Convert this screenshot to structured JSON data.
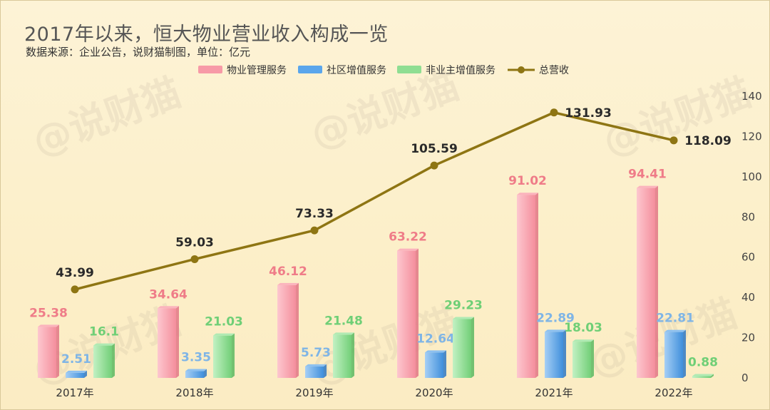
{
  "header": {
    "title": "2017年以来，恒大物业营业收入构成一览",
    "subtitle": "数据来源：企业公告，说财猫制图，单位：亿元"
  },
  "watermark": {
    "text": "@说财猫"
  },
  "colors": {
    "series0": "#f79aa7",
    "series0_label": "#ef7c88",
    "series1": "#5aa6ec",
    "series1_label": "#7fb5e6",
    "series2": "#8fde92",
    "series2_label": "#6fcf76",
    "total": "#8e7513"
  },
  "chart_data": {
    "type": "bar",
    "title": "2017年以来，恒大物业营业收入构成一览",
    "categories": [
      "2017年",
      "2018年",
      "2019年",
      "2020年",
      "2021年",
      "2022年"
    ],
    "series": [
      {
        "name": "物业管理服务",
        "type": "bar",
        "values": [
          25.38,
          34.64,
          46.12,
          63.22,
          91.02,
          94.41
        ]
      },
      {
        "name": "社区增值服务",
        "type": "bar",
        "values": [
          2.51,
          3.35,
          5.73,
          12.64,
          22.89,
          22.81
        ]
      },
      {
        "name": "非业主增值服务",
        "type": "bar",
        "values": [
          16.1,
          21.03,
          21.48,
          29.23,
          18.03,
          0.88
        ]
      },
      {
        "name": "总营收",
        "type": "line",
        "values": [
          43.99,
          59.03,
          73.33,
          105.59,
          131.93,
          118.09
        ]
      }
    ],
    "y_axis": {
      "position": "right",
      "range": [
        0,
        140
      ],
      "ticks": [
        0,
        20,
        40,
        60,
        80,
        100,
        120,
        140
      ]
    },
    "grid": false,
    "legend": "top-center"
  }
}
